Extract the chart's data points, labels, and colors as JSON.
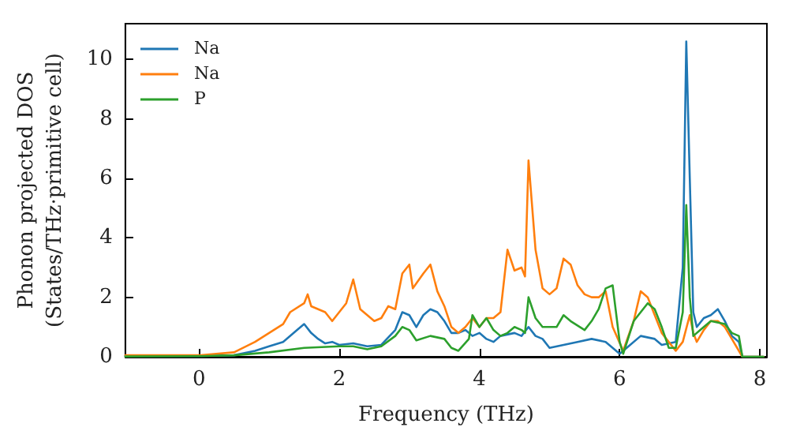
{
  "chart_data": {
    "type": "line",
    "xlabel": "Frequency (THz)",
    "ylabel": "Phonon projected DOS\n(States/THz·primitive cell)",
    "xlim": [
      -1.05,
      8.1
    ],
    "ylim": [
      0,
      11.2
    ],
    "xticks": [
      0,
      2,
      4,
      6,
      8
    ],
    "yticks": [
      0,
      2,
      4,
      6,
      8,
      10
    ],
    "grid": false,
    "legend": "top left",
    "marker": "none",
    "line_style": "solid",
    "series": [
      {
        "name": "Na",
        "color": "#1f77b4",
        "x": [
          -1.05,
          0,
          0.5,
          0.8,
          1,
          1.2,
          1.4,
          1.5,
          1.6,
          1.7,
          1.8,
          1.9,
          2,
          2.2,
          2.4,
          2.6,
          2.8,
          2.9,
          3,
          3.1,
          3.2,
          3.3,
          3.4,
          3.5,
          3.6,
          3.7,
          3.8,
          3.9,
          4,
          4.1,
          4.2,
          4.3,
          4.5,
          4.6,
          4.7,
          4.8,
          4.9,
          5,
          5.2,
          5.4,
          5.6,
          5.8,
          5.9,
          6,
          6.1,
          6.3,
          6.5,
          6.6,
          6.8,
          6.9,
          6.95,
          7,
          7.05,
          7.1,
          7.2,
          7.3,
          7.4,
          7.5,
          7.6,
          7.7,
          7.75,
          8.05
        ],
        "values": [
          0.03,
          0.03,
          0.05,
          0.2,
          0.35,
          0.5,
          0.9,
          1.1,
          0.8,
          0.6,
          0.45,
          0.5,
          0.4,
          0.45,
          0.35,
          0.4,
          0.9,
          1.5,
          1.4,
          1,
          1.4,
          1.6,
          1.5,
          1.2,
          0.8,
          0.8,
          0.9,
          0.7,
          0.8,
          0.6,
          0.5,
          0.7,
          0.8,
          0.7,
          1,
          0.7,
          0.6,
          0.3,
          0.4,
          0.5,
          0.6,
          0.5,
          0.3,
          0.1,
          0.3,
          0.7,
          0.6,
          0.4,
          0.5,
          3,
          10.6,
          6,
          1.5,
          1,
          1.3,
          1.4,
          1.6,
          1.2,
          0.7,
          0.5,
          0,
          0
        ]
      },
      {
        "name": "Na",
        "color": "#ff7f0e",
        "x": [
          -1.05,
          0,
          0.5,
          0.8,
          1,
          1.2,
          1.3,
          1.5,
          1.55,
          1.6,
          1.8,
          1.9,
          2,
          2.1,
          2.2,
          2.3,
          2.5,
          2.6,
          2.7,
          2.8,
          2.9,
          3,
          3.05,
          3.2,
          3.3,
          3.4,
          3.5,
          3.6,
          3.7,
          3.8,
          3.9,
          4,
          4.1,
          4.2,
          4.3,
          4.4,
          4.5,
          4.6,
          4.65,
          4.7,
          4.8,
          4.9,
          5,
          5.1,
          5.2,
          5.3,
          5.4,
          5.5,
          5.6,
          5.7,
          5.8,
          5.9,
          6.05,
          6.2,
          6.3,
          6.4,
          6.5,
          6.6,
          6.8,
          6.9,
          7,
          7.05,
          7.1,
          7.2,
          7.3,
          7.4,
          7.5,
          7.6,
          7.75,
          8.05
        ],
        "values": [
          0.05,
          0.05,
          0.15,
          0.5,
          0.8,
          1.1,
          1.5,
          1.8,
          2.1,
          1.7,
          1.5,
          1.2,
          1.5,
          1.8,
          2.6,
          1.6,
          1.2,
          1.3,
          1.7,
          1.6,
          2.8,
          3.1,
          2.3,
          2.8,
          3.1,
          2.2,
          1.7,
          1,
          0.8,
          1,
          1.3,
          1,
          1.3,
          1.3,
          1.5,
          3.6,
          2.9,
          3,
          2.7,
          6.6,
          3.6,
          2.3,
          2.1,
          2.3,
          3.3,
          3.1,
          2.4,
          2.1,
          2,
          2,
          2.2,
          1,
          0.2,
          1.2,
          2.2,
          2,
          1.4,
          0.8,
          0.2,
          0.5,
          1.4,
          0.8,
          0.5,
          0.9,
          1.2,
          1.2,
          1,
          0.6,
          0,
          0
        ]
      },
      {
        "name": "P",
        "color": "#2ca02c",
        "x": [
          -1.05,
          0,
          0.5,
          1,
          1.5,
          2,
          2.2,
          2.4,
          2.6,
          2.8,
          2.9,
          3,
          3.1,
          3.3,
          3.5,
          3.6,
          3.7,
          3.85,
          3.9,
          4,
          4.1,
          4.2,
          4.3,
          4.4,
          4.5,
          4.6,
          4.65,
          4.7,
          4.8,
          4.9,
          5,
          5.1,
          5.2,
          5.3,
          5.5,
          5.6,
          5.7,
          5.8,
          5.9,
          6,
          6.05,
          6.2,
          6.4,
          6.5,
          6.6,
          6.7,
          6.8,
          6.9,
          6.95,
          7,
          7.05,
          7.15,
          7.3,
          7.5,
          7.6,
          7.7,
          7.75,
          8.05
        ],
        "values": [
          0.01,
          0.02,
          0.05,
          0.15,
          0.3,
          0.35,
          0.35,
          0.25,
          0.35,
          0.7,
          1,
          0.9,
          0.55,
          0.7,
          0.6,
          0.3,
          0.2,
          0.6,
          1.4,
          1,
          1.3,
          0.9,
          0.7,
          0.8,
          1,
          0.9,
          0.8,
          2,
          1.3,
          1,
          1,
          1,
          1.4,
          1.2,
          0.9,
          1.2,
          1.6,
          2.3,
          2.4,
          0.5,
          0.1,
          1.2,
          1.8,
          1.6,
          1,
          0.3,
          0.3,
          1.5,
          5.1,
          2,
          0.7,
          0.9,
          1.2,
          1.1,
          0.8,
          0.7,
          0,
          0
        ]
      }
    ]
  }
}
